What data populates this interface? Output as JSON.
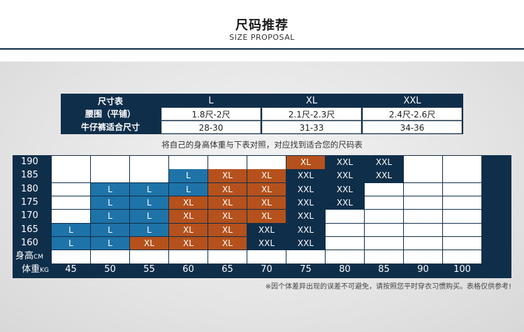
{
  "header": {
    "title": "尺码推荐",
    "subtitle": "SIZE PROPOSAL"
  },
  "size_table": {
    "corner": "尺寸表",
    "columns": [
      "L",
      "XL",
      "XXL"
    ],
    "rows": [
      {
        "label": "腰围（平铺）",
        "values": [
          "1.8尺-2尺",
          "2.1尺-2.3尺",
          "2.4尺-2.6尺"
        ]
      },
      {
        "label": "牛仔裤适合尺寸",
        "values": [
          "28-30",
          "31-33",
          "34-36"
        ]
      }
    ]
  },
  "instruction": "将自己的身高体重与下表对照，对应找到适合您的尺码表",
  "grid": {
    "row_labels": [
      "190",
      "185",
      "180",
      "175",
      "170",
      "165",
      "160"
    ],
    "height_label": "身高",
    "height_unit": "CM",
    "weight_label": "体重",
    "weight_unit": "KG",
    "col_labels": [
      "45",
      "50",
      "55",
      "60",
      "65",
      "70",
      "75",
      "80",
      "85",
      "90",
      "100"
    ],
    "cells": [
      [
        "",
        "",
        "",
        "",
        "",
        "",
        "XL",
        "XXL",
        "XXL",
        "",
        ""
      ],
      [
        "",
        "",
        "",
        "L",
        "XL",
        "XL",
        "XXL",
        "XXL",
        "XXL",
        "",
        ""
      ],
      [
        "",
        "L",
        "L",
        "L",
        "XL",
        "XL",
        "XXL",
        "XXL",
        "",
        "",
        ""
      ],
      [
        "",
        "L",
        "L",
        "XL",
        "XL",
        "XL",
        "XXL",
        "XXL",
        "",
        "",
        ""
      ],
      [
        "",
        "L",
        "L",
        "XL",
        "XL",
        "XL",
        "XXL",
        "",
        "",
        "",
        ""
      ],
      [
        "L",
        "L",
        "L",
        "XL",
        "XL",
        "XXL",
        "XXL",
        "",
        "",
        "",
        ""
      ],
      [
        "L",
        "L",
        "XL",
        "XL",
        "XL",
        "XXL",
        "XXL",
        "",
        "",
        "",
        ""
      ]
    ]
  },
  "colors": {
    "navy": "#0f2e4a",
    "L": "#1e73a8",
    "XL": "#b5511c",
    "XXL": "#0f2e4a"
  },
  "footnote": "※因个体差异出现的误差不可避免，请按照您平时穿衣习惯购买。表格仅供参考!"
}
